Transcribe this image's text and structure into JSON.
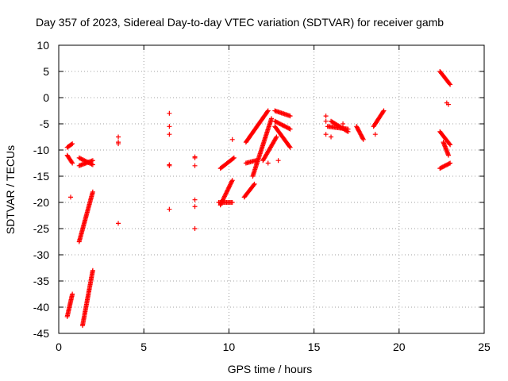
{
  "chart_data": {
    "type": "scatter",
    "title": "Day 357 of 2023, Sidereal Day-to-day VTEC variation (SDTVAR) for receiver gamb",
    "xlabel": "GPS time / hours",
    "ylabel": "SDTVAR / TECUs",
    "xlim": [
      0,
      25
    ],
    "ylim": [
      -45,
      10
    ],
    "xticks": [
      "0",
      "5",
      "10",
      "15",
      "20",
      "25"
    ],
    "yticks": [
      "10",
      "5",
      "0",
      "-5",
      "-10",
      "-15",
      "-20",
      "-25",
      "-30",
      "-35",
      "-40",
      "-45"
    ],
    "grid": true,
    "marker": "+",
    "color": "#ff0000",
    "segments": [
      {
        "from": [
          0.5,
          -41.8
        ],
        "to": [
          0.8,
          -37.5
        ]
      },
      {
        "from": [
          0.5,
          -11.0
        ],
        "to": [
          0.8,
          -12.5
        ]
      },
      {
        "from": [
          0.5,
          -9.5
        ],
        "to": [
          0.8,
          -8.8
        ]
      },
      {
        "from": [
          1.2,
          -27.5
        ],
        "to": [
          2.0,
          -18.0
        ]
      },
      {
        "from": [
          1.4,
          -43.5
        ],
        "to": [
          2.0,
          -33.0
        ]
      },
      {
        "from": [
          1.2,
          -11.5
        ],
        "to": [
          2.0,
          -12.8
        ]
      },
      {
        "from": [
          1.2,
          -13.0
        ],
        "to": [
          2.0,
          -12.0
        ]
      },
      {
        "from": [
          9.5,
          -20.5
        ],
        "to": [
          10.2,
          -15.8
        ]
      },
      {
        "from": [
          9.4,
          -20.0
        ],
        "to": [
          10.2,
          -20.0
        ]
      },
      {
        "from": [
          9.5,
          -13.5
        ],
        "to": [
          10.3,
          -11.5
        ]
      },
      {
        "from": [
          10.9,
          -19.0
        ],
        "to": [
          11.5,
          -16.5
        ]
      },
      {
        "from": [
          11.0,
          -8.5
        ],
        "to": [
          12.3,
          -2.5
        ]
      },
      {
        "from": [
          11.4,
          -15.0
        ],
        "to": [
          12.5,
          -4.0
        ]
      },
      {
        "from": [
          11.0,
          -12.5
        ],
        "to": [
          11.6,
          -12.0
        ]
      },
      {
        "from": [
          12.0,
          -12.0
        ],
        "to": [
          12.8,
          -7.5
        ]
      },
      {
        "from": [
          12.7,
          -4.5
        ],
        "to": [
          13.6,
          -6.0
        ]
      },
      {
        "from": [
          12.7,
          -5.5
        ],
        "to": [
          13.6,
          -9.5
        ]
      },
      {
        "from": [
          12.7,
          -2.5
        ],
        "to": [
          13.6,
          -3.5
        ]
      },
      {
        "from": [
          15.8,
          -5.5
        ],
        "to": [
          17.0,
          -6.0
        ]
      },
      {
        "from": [
          16.0,
          -4.5
        ],
        "to": [
          17.0,
          -6.5
        ]
      },
      {
        "from": [
          17.5,
          -5.5
        ],
        "to": [
          17.9,
          -8.0
        ]
      },
      {
        "from": [
          18.5,
          -5.5
        ],
        "to": [
          19.1,
          -2.5
        ]
      },
      {
        "from": [
          22.4,
          5.0
        ],
        "to": [
          23.0,
          2.5
        ]
      },
      {
        "from": [
          22.4,
          -6.5
        ],
        "to": [
          23.0,
          -9.0
        ]
      },
      {
        "from": [
          22.4,
          -13.5
        ],
        "to": [
          23.0,
          -12.5
        ]
      },
      {
        "from": [
          22.6,
          -8.5
        ],
        "to": [
          22.9,
          -11.0
        ]
      }
    ],
    "points": [
      [
        0.7,
        -19.0
      ],
      [
        3.5,
        -7.5
      ],
      [
        3.5,
        -8.5
      ],
      [
        3.5,
        -8.8
      ],
      [
        3.5,
        -24.0
      ],
      [
        6.5,
        -3.0
      ],
      [
        6.5,
        -5.5
      ],
      [
        6.5,
        -7.0
      ],
      [
        6.5,
        -12.8
      ],
      [
        6.5,
        -13.0
      ],
      [
        6.5,
        -21.3
      ],
      [
        8.0,
        -11.3
      ],
      [
        8.0,
        -11.5
      ],
      [
        8.0,
        -13.0
      ],
      [
        8.0,
        -19.5
      ],
      [
        8.0,
        -20.8
      ],
      [
        8.0,
        -25.0
      ],
      [
        10.2,
        -8.0
      ],
      [
        12.3,
        -12.5
      ],
      [
        12.9,
        -12.0
      ],
      [
        15.7,
        -3.5
      ],
      [
        15.7,
        -4.5
      ],
      [
        15.7,
        -7.0
      ],
      [
        16.0,
        -7.5
      ],
      [
        16.7,
        -5.0
      ],
      [
        18.6,
        -7.0
      ],
      [
        22.8,
        -1.0
      ],
      [
        22.9,
        -1.3
      ]
    ]
  }
}
